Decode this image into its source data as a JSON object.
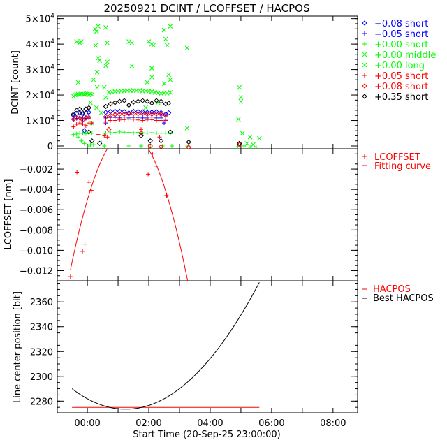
{
  "chart_data": [
    {
      "type": "scatter",
      "title": "20250921 DCINT / LCOFFSET / HACPOS",
      "ylabel": "DCINT [count]",
      "xlim_hours": [
        -0.98,
        8.8
      ],
      "ylim": [
        -1100,
        51000
      ],
      "yticks": [
        0,
        10000,
        20000,
        30000,
        40000,
        50000
      ],
      "ytick_labels": [
        "0",
        "1×10^4",
        "2×10^4",
        "3×10^4",
        "4×10^4",
        "5×10^4"
      ],
      "legend_position": "right",
      "series": [
        {
          "name": "−0.08 short",
          "marker": "diamond",
          "color": "#0000ff",
          "t": [
            -0.45,
            -0.35,
            -0.25,
            -0.15,
            -0.05,
            0.05,
            0.6,
            0.75,
            0.9,
            1.05,
            1.2,
            1.35,
            1.5,
            1.65,
            1.8,
            1.95,
            2.1,
            2.25,
            2.4,
            2.55,
            2.65,
            -0.1
          ],
          "v": [
            12000,
            12800,
            13000,
            12500,
            12800,
            13200,
            13200,
            13500,
            13600,
            13600,
            13500,
            13000,
            13600,
            13500,
            13400,
            13200,
            13300,
            13400,
            13100,
            12500,
            13000,
            6000
          ]
        },
        {
          "name": "−0.05 short",
          "marker": "plus",
          "color": "#0000ff",
          "t": [
            -0.45,
            -0.35,
            -0.25,
            -0.15,
            -0.05,
            0.05,
            0.6,
            0.75,
            0.9,
            1.05,
            1.2,
            1.35,
            1.5,
            1.65,
            1.8,
            1.95,
            2.1,
            2.25,
            2.4,
            2.55,
            0.6,
            2.5
          ],
          "v": [
            10500,
            10800,
            11000,
            10500,
            10800,
            11000,
            11000,
            11200,
            11200,
            11000,
            11300,
            11000,
            11200,
            11200,
            11000,
            11000,
            11300,
            11000,
            11000,
            10500,
            9000,
            9000
          ]
        },
        {
          "name": "+0.00 short",
          "marker": "plus",
          "color": "#00ff00",
          "t": [
            -0.45,
            -0.35,
            -0.25,
            -0.15,
            -0.05,
            0.05,
            0.15,
            0.6,
            0.75,
            0.9,
            1.05,
            1.2,
            1.35,
            1.5,
            1.65,
            1.8,
            1.95,
            2.1,
            2.25,
            2.4,
            2.55,
            2.7,
            -0.3,
            -0.1,
            0.05,
            0.2,
            0.35,
            0.55,
            1.35,
            1.75,
            2.05,
            2.45,
            2.75,
            3.25,
            4.9,
            5.1,
            5.3,
            5.5,
            -0.2,
            0.1,
            0.45
          ],
          "v": [
            4500,
            4700,
            5000,
            5000,
            4800,
            5200,
            5000,
            5000,
            5200,
            5300,
            5500,
            5400,
            5300,
            5200,
            5300,
            5200,
            5000,
            5200,
            5000,
            5000,
            5000,
            4800,
            3500,
            1000,
            0,
            500,
            -500,
            0,
            0,
            0,
            -500,
            0,
            0,
            -300,
            -300,
            0,
            -500,
            -500,
            2000,
            500,
            1500
          ]
        },
        {
          "name": "+0.00 middle",
          "marker": "x",
          "color": "#00ff00",
          "t": [
            -0.45,
            -0.4,
            -0.35,
            -0.3,
            -0.25,
            -0.2,
            -0.15,
            -0.1,
            -0.05,
            0.0,
            0.05,
            0.1,
            0.15,
            0.6,
            0.7,
            0.8,
            0.9,
            1.0,
            1.1,
            1.2,
            1.3,
            1.4,
            1.5,
            1.6,
            1.7,
            1.8,
            1.9,
            2.0,
            2.1,
            2.2,
            2.3,
            2.4,
            2.5,
            2.6,
            2.7
          ],
          "v": [
            19500,
            20000,
            20200,
            20300,
            20200,
            20400,
            20300,
            20200,
            20400,
            20500,
            20000,
            20300,
            20200,
            19000,
            21000,
            21200,
            21400,
            21500,
            21600,
            21600,
            21700,
            21700,
            21800,
            21700,
            21800,
            21600,
            21600,
            21500,
            21400,
            21000,
            20800,
            20600,
            20800,
            20700,
            21000
          ]
        },
        {
          "name": "+0.00 long",
          "marker": "x",
          "color": "#00ff00",
          "t": [
            -0.35,
            -0.25,
            -0.2,
            0.25,
            0.3,
            0.35,
            0.27,
            0.35,
            0.4,
            0.32,
            0.6,
            0.65,
            0.6,
            0.65,
            1.35,
            1.45,
            1.45,
            2.0,
            2.1,
            2.15,
            2.1,
            2.1,
            2.5,
            2.55,
            2.6,
            2.7,
            2.65,
            2.7,
            3.25,
            3.25,
            4.95,
            5.0,
            5.0,
            4.92,
            5.05,
            5.3,
            5.6,
            -0.3,
            0.2,
            0.32,
            0.55,
            1.95,
            2.5,
            0.1,
            0.3,
            0.45,
            1.9,
            2.3,
            0.15,
            5.2,
            5.4
          ],
          "v": [
            41000,
            40500,
            41000,
            46000,
            45000,
            47000,
            39500,
            34500,
            33500,
            29000,
            46500,
            40500,
            31500,
            33000,
            41000,
            40500,
            31500,
            41000,
            40000,
            39500,
            30500,
            27000,
            45500,
            42000,
            39500,
            47000,
            28000,
            26000,
            38500,
            7000,
            23000,
            19000,
            17500,
            10500,
            5000,
            3500,
            3000,
            25000,
            26000,
            23000,
            23000,
            25000,
            24500,
            17000,
            15000,
            13000,
            15000,
            17000,
            9000,
            1000,
            500
          ]
        },
        {
          "name": "+0.05 short",
          "marker": "plus",
          "color": "#ff0000",
          "t": [
            -0.45,
            -0.35,
            -0.25,
            -0.15,
            -0.05,
            0.05,
            0.15,
            0.6,
            0.75,
            0.9,
            1.05,
            1.2,
            1.35,
            1.5,
            1.65,
            1.8,
            1.95,
            2.1,
            2.25,
            2.4,
            2.55,
            0.35,
            0.55,
            1.75,
            2.35,
            0.65
          ],
          "v": [
            7500,
            8500,
            9000,
            8500,
            8000,
            9000,
            9000,
            9500,
            10000,
            10000,
            10200,
            10300,
            10500,
            10500,
            10200,
            10000,
            10200,
            10300,
            10000,
            10000,
            10000,
            4500,
            4000,
            6500,
            3500,
            3500
          ]
        },
        {
          "name": "+0.08 short",
          "marker": "diamond",
          "color": "#ff0000",
          "t": [
            -0.45,
            -0.35,
            -0.25,
            -0.15,
            -0.05,
            0.05,
            0.6,
            0.75,
            0.9,
            1.05,
            1.2,
            1.35,
            1.5,
            1.65,
            1.8,
            1.95,
            2.1,
            2.25,
            2.4,
            2.55,
            0.7,
            1.75,
            2.05,
            2.4,
            3.3,
            4.95
          ],
          "v": [
            10500,
            11000,
            11000,
            10200,
            11000,
            11200,
            11500,
            12000,
            12300,
            12500,
            12500,
            12600,
            12700,
            12700,
            12700,
            12500,
            12500,
            12600,
            12400,
            12000,
            6500,
            5000,
            0,
            -300,
            -500,
            500
          ]
        },
        {
          "name": "+0.35 short",
          "marker": "diamond",
          "color": "#000000",
          "t": [
            -0.45,
            -0.35,
            -0.25,
            -0.15,
            -0.05,
            0.05,
            0.6,
            0.75,
            0.9,
            1.05,
            1.2,
            1.35,
            1.5,
            1.65,
            1.8,
            1.95,
            2.1,
            2.25,
            2.4,
            2.55,
            2.65,
            0.05,
            0.15,
            0.4,
            1.75,
            2.05,
            2.4,
            2.7,
            3.3,
            4.95
          ],
          "v": [
            12500,
            14000,
            14500,
            13000,
            14500,
            15000,
            15500,
            16500,
            17000,
            17500,
            17800,
            16000,
            17200,
            17500,
            17800,
            17500,
            16800,
            17800,
            17500,
            16500,
            16800,
            5500,
            2000,
            1000,
            4000,
            2000,
            2000,
            5500,
            1500,
            1000
          ]
        }
      ]
    },
    {
      "type": "scatter",
      "ylabel": "LCOFFSET [nm]",
      "ylim": [
        -0.013,
        0
      ],
      "yticks": [
        -0.002,
        -0.004,
        -0.006,
        -0.008,
        -0.01,
        -0.012
      ],
      "ytick_labels": [
        "−0.002",
        "−0.004",
        "−0.006",
        "−0.008",
        "−0.010",
        "−0.012"
      ],
      "legend": [
        "LCOFFSET",
        "Fitting curve"
      ],
      "color": "#ff0000",
      "points": {
        "t": [
          -0.55,
          -0.34,
          0.05,
          0.13,
          -0.16,
          -0.08,
          1.98,
          2.12,
          2.24,
          2.58
        ],
        "v": [
          -0.0126,
          -0.0023,
          -0.0033,
          -0.0041,
          -0.0101,
          -0.0094,
          -0.0025,
          -0.0005,
          -0.0017,
          -0.0046
        ]
      },
      "fit": {
        "form": "a*(t-t0)^2+c",
        "a": -0.0039,
        "t0": 1.32,
        "c": 0.00175,
        "t_range": [
          -0.55,
          3.3
        ]
      }
    },
    {
      "type": "line",
      "ylabel": "Line center position [bit]",
      "xlabel": "Start Time (20-Sep-25 23:00:00)",
      "ylim": [
        2270.6,
        2377
      ],
      "yticks": [
        2280,
        2300,
        2320,
        2340,
        2360
      ],
      "ytick_labels": [
        "2280",
        "2300",
        "2320",
        "2340",
        "2360"
      ],
      "xticks_hours": [
        0,
        2,
        4,
        6,
        8
      ],
      "xtick_labels": [
        "00:00",
        "02:00",
        "04:00",
        "06:00",
        "08:00"
      ],
      "legend": [
        "HACPOS",
        "Best HACPOS"
      ],
      "series": [
        {
          "name": "HACPOS",
          "color": "#ff0000",
          "constant": 2275,
          "t_range": [
            -0.5,
            5.6
          ]
        },
        {
          "name": "Best HACPOS",
          "color": "#000000",
          "form": "a*(t-t0)^2+c",
          "a": 5.4,
          "t0": 1.25,
          "c": 2273.5,
          "t_range": [
            -0.5,
            5.6
          ]
        }
      ]
    }
  ]
}
